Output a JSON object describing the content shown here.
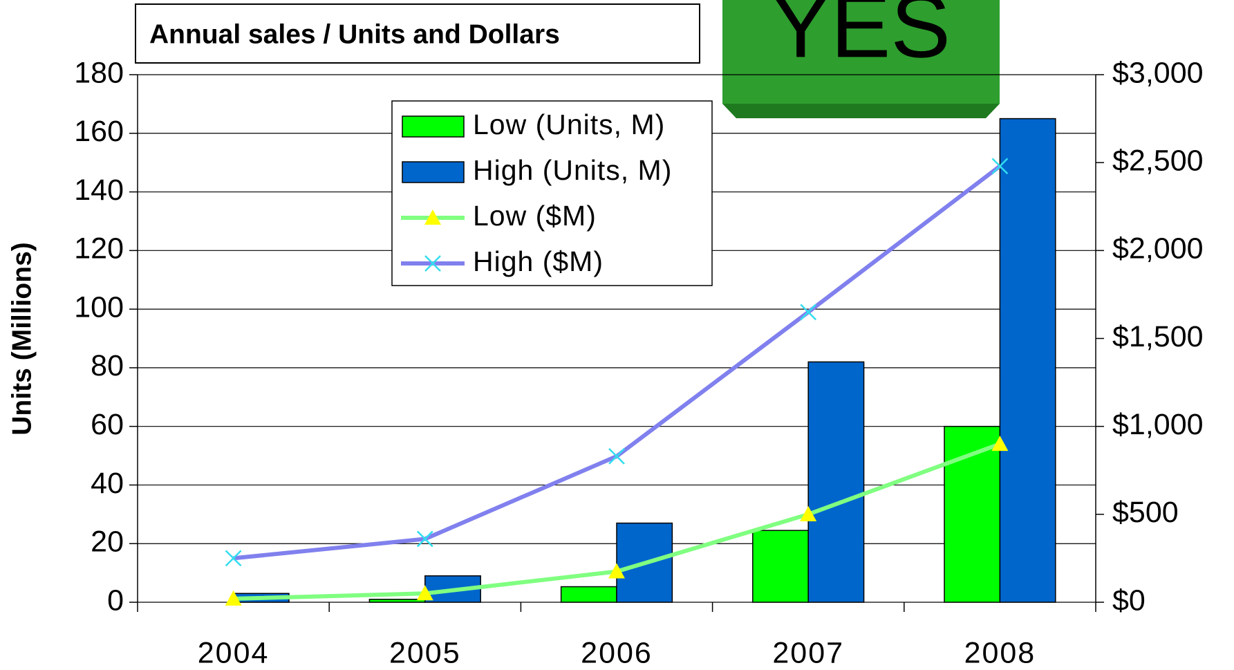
{
  "badge": "YES",
  "chart_data": {
    "type": "bar",
    "title": "Annual sales / Units and Dollars",
    "y_label": "Units (Millions)",
    "categories": [
      "2004",
      "2005",
      "2006",
      "2007",
      "2008"
    ],
    "series": [
      {
        "name": "Low (Units, M)",
        "type": "bar",
        "color": "#00ff00",
        "values": [
          0,
          1,
          5.3,
          24.5,
          60
        ]
      },
      {
        "name": "High (Units, M)",
        "type": "bar",
        "color": "#0066cc",
        "values": [
          3,
          9,
          27,
          82,
          165
        ]
      },
      {
        "name": "Low ($M)",
        "type": "line",
        "axis": "y2",
        "color": "#80ff80",
        "marker": "triangle",
        "marker_color": "#ffff00",
        "values": [
          20,
          50,
          175,
          500,
          900
        ]
      },
      {
        "name": "High ($M)",
        "type": "line",
        "axis": "y2",
        "color": "#8080ee",
        "marker": "x",
        "marker_color": "#33ddee",
        "values": [
          250,
          360,
          830,
          1650,
          2480
        ]
      }
    ],
    "ylim": [
      0,
      180
    ],
    "yticks": [
      0,
      20,
      40,
      60,
      80,
      100,
      120,
      140,
      160,
      180
    ],
    "y2lim": [
      0,
      3000
    ],
    "y2ticks": [
      {
        "value": 0,
        "label": "$0"
      },
      {
        "value": 500,
        "label": "$500"
      },
      {
        "value": 1000,
        "label": "$1,000"
      },
      {
        "value": 1500,
        "label": "$1,500"
      },
      {
        "value": 2000,
        "label": "$2,000"
      },
      {
        "value": 2500,
        "label": "$2,500"
      },
      {
        "value": 3000,
        "label": "$3,000"
      }
    ],
    "grid": true
  }
}
